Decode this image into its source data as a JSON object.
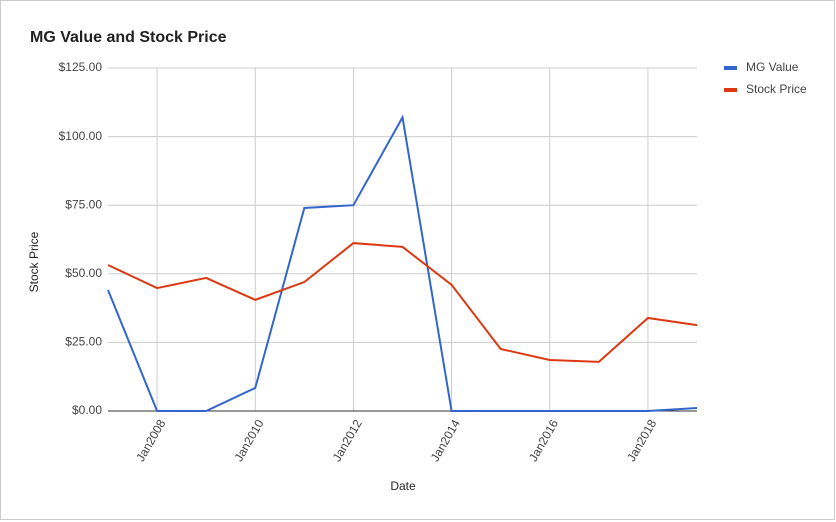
{
  "chart_data": {
    "type": "line",
    "title": "MG Value and Stock Price",
    "x_label": "Date",
    "y_label": "Stock Price",
    "x": [
      2007,
      2008,
      2009,
      2010,
      2011,
      2012,
      2013,
      2014,
      2015,
      2016,
      2017,
      2018,
      2019
    ],
    "xlim": [
      2007,
      2019
    ],
    "xticks": [
      {
        "value": 2008,
        "label": "Jan2008"
      },
      {
        "value": 2010,
        "label": "Jan2010"
      },
      {
        "value": 2012,
        "label": "Jan2012"
      },
      {
        "value": 2014,
        "label": "Jan2014"
      },
      {
        "value": 2016,
        "label": "Jan2016"
      },
      {
        "value": 2018,
        "label": "Jan2018"
      }
    ],
    "ylim": [
      0,
      125
    ],
    "yticks": [
      {
        "value": 0,
        "label": "$0.00"
      },
      {
        "value": 25,
        "label": "$25.00"
      },
      {
        "value": 50,
        "label": "$50.00"
      },
      {
        "value": 75,
        "label": "$75.00"
      },
      {
        "value": 100,
        "label": "$100.00"
      },
      {
        "value": 125,
        "label": "$125.00"
      }
    ],
    "grid": true,
    "legend": "right",
    "series": [
      {
        "name": "MG Value",
        "color": "#3366cc",
        "values": [
          44.1,
          0,
          0,
          8.4,
          74,
          75,
          107,
          0,
          0,
          0,
          0,
          0,
          1.1
        ]
      },
      {
        "name": "Stock Price",
        "color": "#dc3912",
        "values": [
          53.2,
          44.8,
          48.5,
          40.5,
          47,
          61.2,
          59.8,
          46,
          22.6,
          18.6,
          17.9,
          33.9,
          31.3
        ]
      }
    ]
  }
}
